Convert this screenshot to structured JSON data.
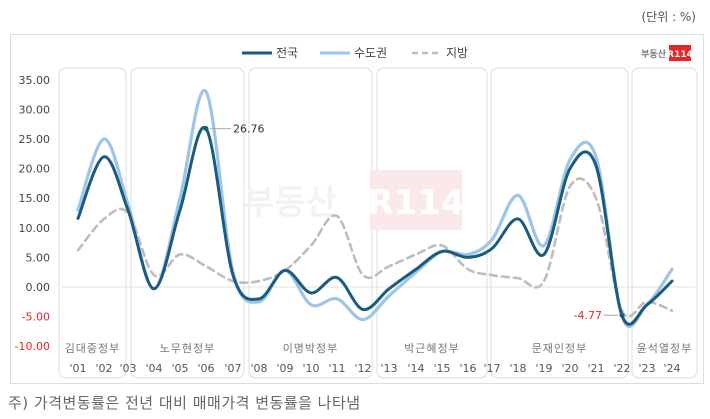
{
  "header": {
    "unit_label": "(단위 : %)"
  },
  "brand": {
    "text": "부동산",
    "badge": "R114",
    "badge_color": "#e5262c"
  },
  "footnote": "주) 가격변동률은 전년 대비 매매가격 변동률을 나타냄",
  "annotations": [
    {
      "label": "26.76",
      "series": "전국",
      "x": "'06",
      "color": "#333333"
    },
    {
      "label": "-4.77",
      "series": "전국",
      "x": "'22",
      "color": "#e5262c"
    }
  ],
  "chart_data": {
    "type": "line",
    "title": "",
    "xlabel": "",
    "ylabel": "",
    "unit": "%",
    "ylim": [
      -10,
      35
    ],
    "yticks": [
      "35.00",
      "30.00",
      "25.00",
      "20.00",
      "15.00",
      "10.00",
      "5.00",
      "0.00",
      "-5.00",
      "-10.00"
    ],
    "negative_tick_color": "#e5262c",
    "grid": false,
    "legend_position": "top-center",
    "x": [
      "'01",
      "'02",
      "'03",
      "'04",
      "'05",
      "'06",
      "'07",
      "'08",
      "'09",
      "'10",
      "'11",
      "'12",
      "'13",
      "'14",
      "'15",
      "'16",
      "'17",
      "'18",
      "'19",
      "'20",
      "'21",
      "'22",
      "'23",
      "'24"
    ],
    "series": [
      {
        "name": "전국",
        "color": "#1b5b7e",
        "style": "solid",
        "values": [
          11.6,
          22.0,
          13.0,
          -0.3,
          13.0,
          26.76,
          2.0,
          -2.0,
          2.8,
          -1.0,
          1.6,
          -3.8,
          -0.3,
          3.0,
          6.0,
          5.0,
          6.5,
          11.5,
          5.5,
          20.0,
          20.5,
          -4.77,
          -3.0,
          1.0
        ]
      },
      {
        "name": "수도권",
        "color": "#9cc5e8",
        "style": "solid",
        "values": [
          13.0,
          25.0,
          14.0,
          -0.3,
          15.0,
          33.0,
          2.5,
          -2.5,
          2.8,
          -3.0,
          -2.0,
          -5.5,
          -1.5,
          2.5,
          6.0,
          5.5,
          8.0,
          15.5,
          7.0,
          21.5,
          22.0,
          -5.0,
          -3.0,
          3.0
        ]
      },
      {
        "name": "지방",
        "color": "#bdbdbd",
        "style": "dashed",
        "values": [
          6.2,
          11.5,
          12.5,
          2.0,
          5.5,
          3.5,
          1.0,
          1.0,
          2.8,
          7.0,
          12.0,
          2.0,
          3.5,
          5.5,
          7.0,
          3.0,
          2.0,
          1.5,
          1.0,
          17.0,
          15.0,
          -4.0,
          -2.5,
          -4.0
        ]
      }
    ],
    "periods": [
      {
        "label": "김대중정부",
        "from": "'01",
        "to": "'02"
      },
      {
        "label": "노무현정부",
        "from": "'03",
        "to": "'07"
      },
      {
        "label": "이명박정부",
        "from": "'08",
        "to": "'12"
      },
      {
        "label": "박근혜정부",
        "from": "'13",
        "to": "'16"
      },
      {
        "label": "문재인정부",
        "from": "'17",
        "to": "'22"
      },
      {
        "label": "윤석열정부",
        "from": "'23",
        "to": "'24"
      }
    ]
  }
}
